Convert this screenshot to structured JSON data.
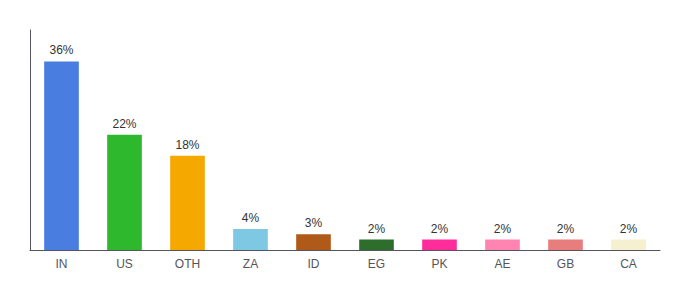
{
  "chart_data": {
    "type": "bar",
    "categories": [
      "IN",
      "US",
      "OTH",
      "ZA",
      "ID",
      "EG",
      "PK",
      "AE",
      "GB",
      "CA"
    ],
    "values": [
      36,
      22,
      18,
      4,
      3,
      2,
      2,
      2,
      2,
      2
    ],
    "value_labels": [
      "36%",
      "22%",
      "18%",
      "4%",
      "3%",
      "2%",
      "2%",
      "2%",
      "2%",
      "2%"
    ],
    "colors": [
      "#4a7de0",
      "#2db82d",
      "#f5a800",
      "#7ec8e3",
      "#b05a1a",
      "#2d6e2d",
      "#ff2d9b",
      "#ff85b0",
      "#e87d7d",
      "#f5f0d0"
    ],
    "ylim": [
      0,
      42
    ],
    "data_labels": true,
    "tick_labels": "x",
    "grid": false
  }
}
